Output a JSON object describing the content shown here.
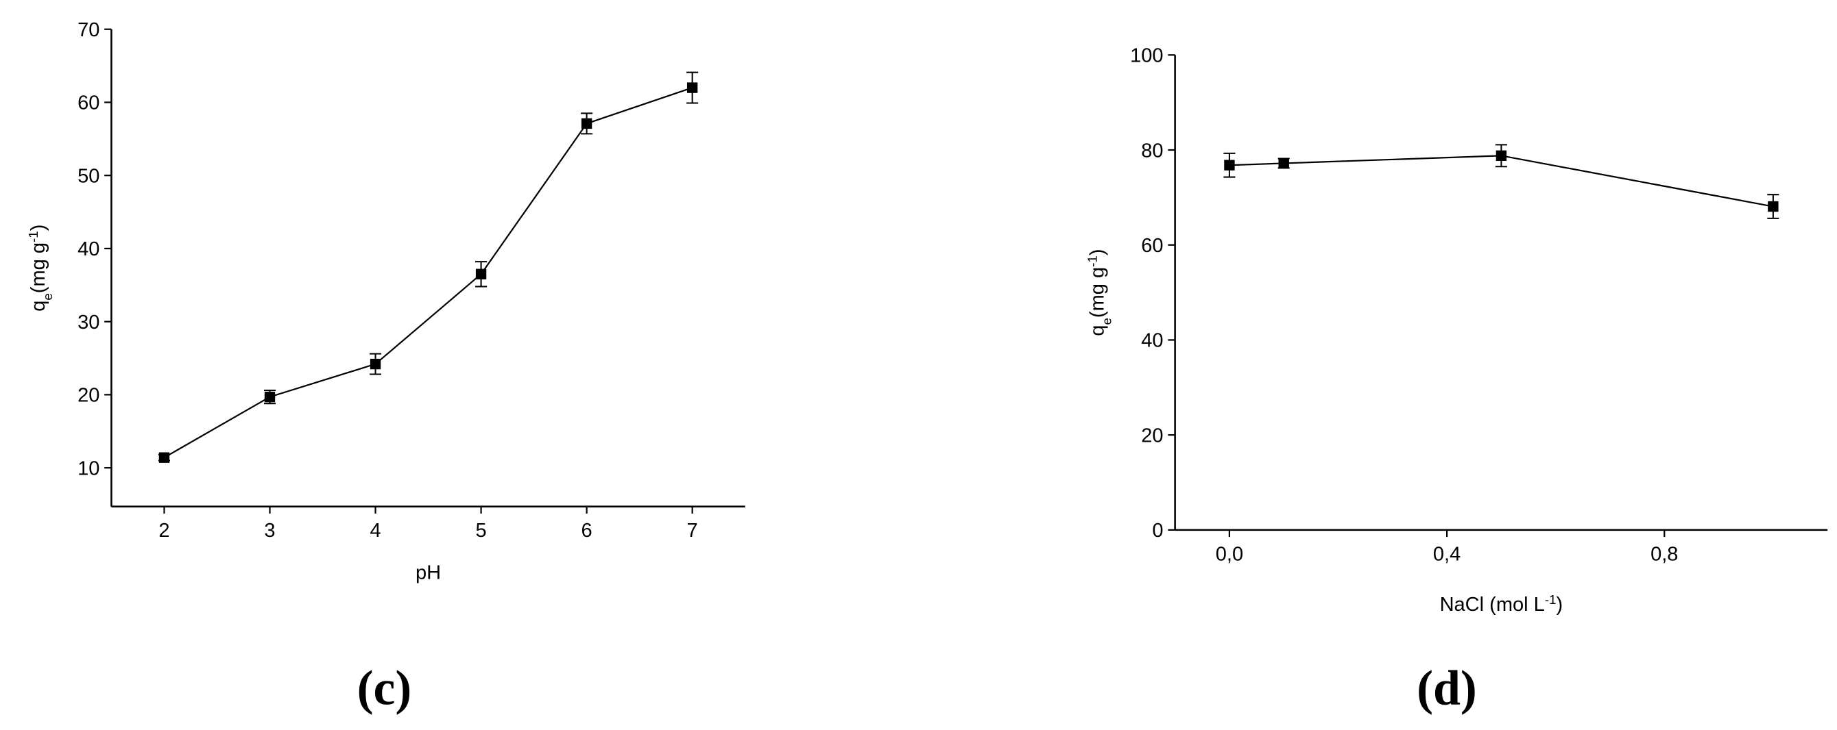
{
  "chart_data": [
    {
      "type": "line",
      "caption": "(c)",
      "xlabel": [
        {
          "text": "pH",
          "shift": "none"
        }
      ],
      "ylabel": [
        {
          "text": "q",
          "shift": "none"
        },
        {
          "text": "e",
          "shift": "sub"
        },
        {
          "text": "(mg g",
          "shift": "none"
        },
        {
          "text": "-1",
          "shift": "sup"
        },
        {
          "text": ")",
          "shift": "none"
        }
      ],
      "x": [
        2,
        3,
        4,
        5,
        6,
        7
      ],
      "values": [
        11.4,
        19.7,
        24.2,
        36.5,
        57.1,
        62.0
      ],
      "errors": [
        0.4,
        0.9,
        1.4,
        1.7,
        1.4,
        2.1
      ],
      "color": "#000000",
      "xlim": [
        1.5,
        7.5
      ],
      "xticks": [
        2,
        3,
        4,
        5,
        6,
        7
      ],
      "ylim": [
        4.7,
        70
      ],
      "yticks": [
        10,
        20,
        30,
        40,
        50,
        60,
        70
      ]
    },
    {
      "type": "line",
      "caption": "(d)",
      "xlabel": [
        {
          "text": "NaCl (mol L",
          "shift": "none"
        },
        {
          "text": "-1",
          "shift": "sup"
        },
        {
          "text": ")",
          "shift": "none"
        }
      ],
      "ylabel": [
        {
          "text": "q",
          "shift": "none"
        },
        {
          "text": "e",
          "shift": "sub"
        },
        {
          "text": "(mg g",
          "shift": "none"
        },
        {
          "text": "-1",
          "shift": "sup"
        },
        {
          "text": ")",
          "shift": "none"
        }
      ],
      "x": [
        0,
        0.1,
        0.5,
        1.0
      ],
      "values": [
        76.8,
        77.2,
        78.8,
        68.1
      ],
      "errors": [
        2.5,
        1.0,
        2.3,
        2.5
      ],
      "color": "#000000",
      "xlim": [
        -0.1,
        1.1
      ],
      "xticks": [
        {
          "value": 0,
          "label": "0,0"
        },
        {
          "value": 0.4,
          "label": "0,4"
        },
        {
          "value": 0.8,
          "label": "0,8"
        }
      ],
      "ylim": [
        0,
        100
      ],
      "yticks": [
        0,
        20,
        40,
        60,
        80,
        100
      ]
    }
  ]
}
